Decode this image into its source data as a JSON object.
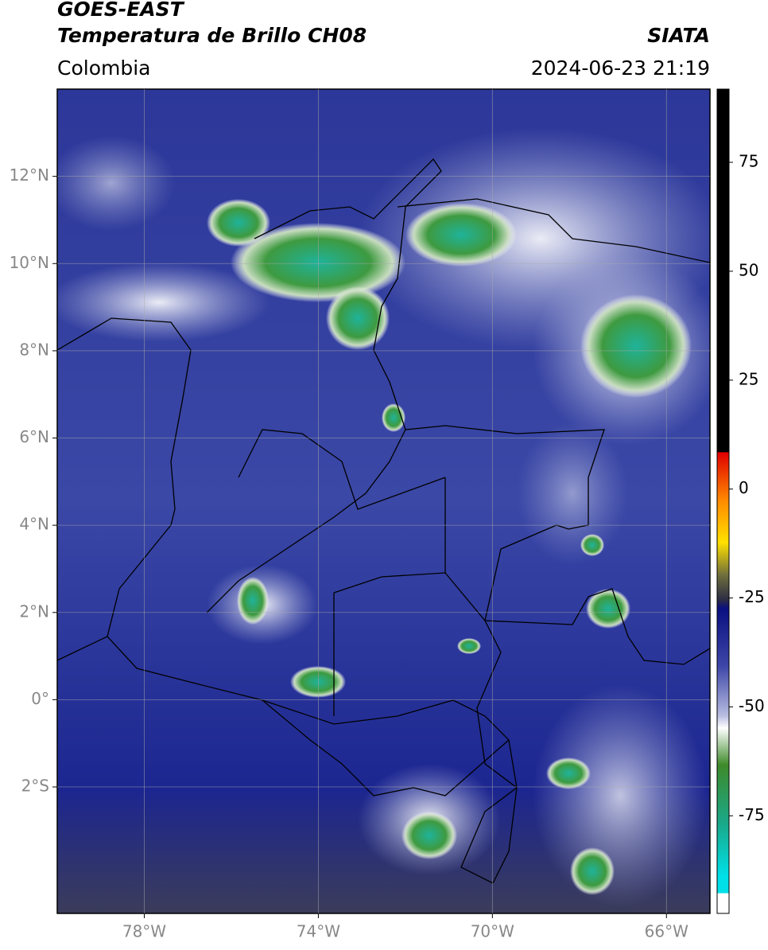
{
  "header": {
    "satellite": "GOES-EAST",
    "product": "Temperatura de Brillo CH08",
    "source": "SIATA",
    "region": "Colombia",
    "datetime": "2024-06-23 21:19"
  },
  "map": {
    "xlim": [
      -80,
      -65
    ],
    "ylim": [
      -4.9,
      14
    ],
    "lon_ticks": [
      {
        "value": -78,
        "label": "78°W"
      },
      {
        "value": -74,
        "label": "74°W"
      },
      {
        "value": -70,
        "label": "70°W"
      },
      {
        "value": -66,
        "label": "66°W"
      }
    ],
    "lat_ticks": [
      {
        "value": 12,
        "label": "12°N"
      },
      {
        "value": 10,
        "label": "10°N"
      },
      {
        "value": 8,
        "label": "8°N"
      },
      {
        "value": 6,
        "label": "6°N"
      },
      {
        "value": 4,
        "label": "4°N"
      },
      {
        "value": 2,
        "label": "2°N"
      },
      {
        "value": 0,
        "label": "0°"
      },
      {
        "value": -2,
        "label": "2°S"
      }
    ]
  },
  "colorbar": {
    "lim": [
      -97.4,
      91.8
    ],
    "ticks": [
      75,
      50,
      25,
      0,
      -25,
      -50,
      -75
    ]
  }
}
